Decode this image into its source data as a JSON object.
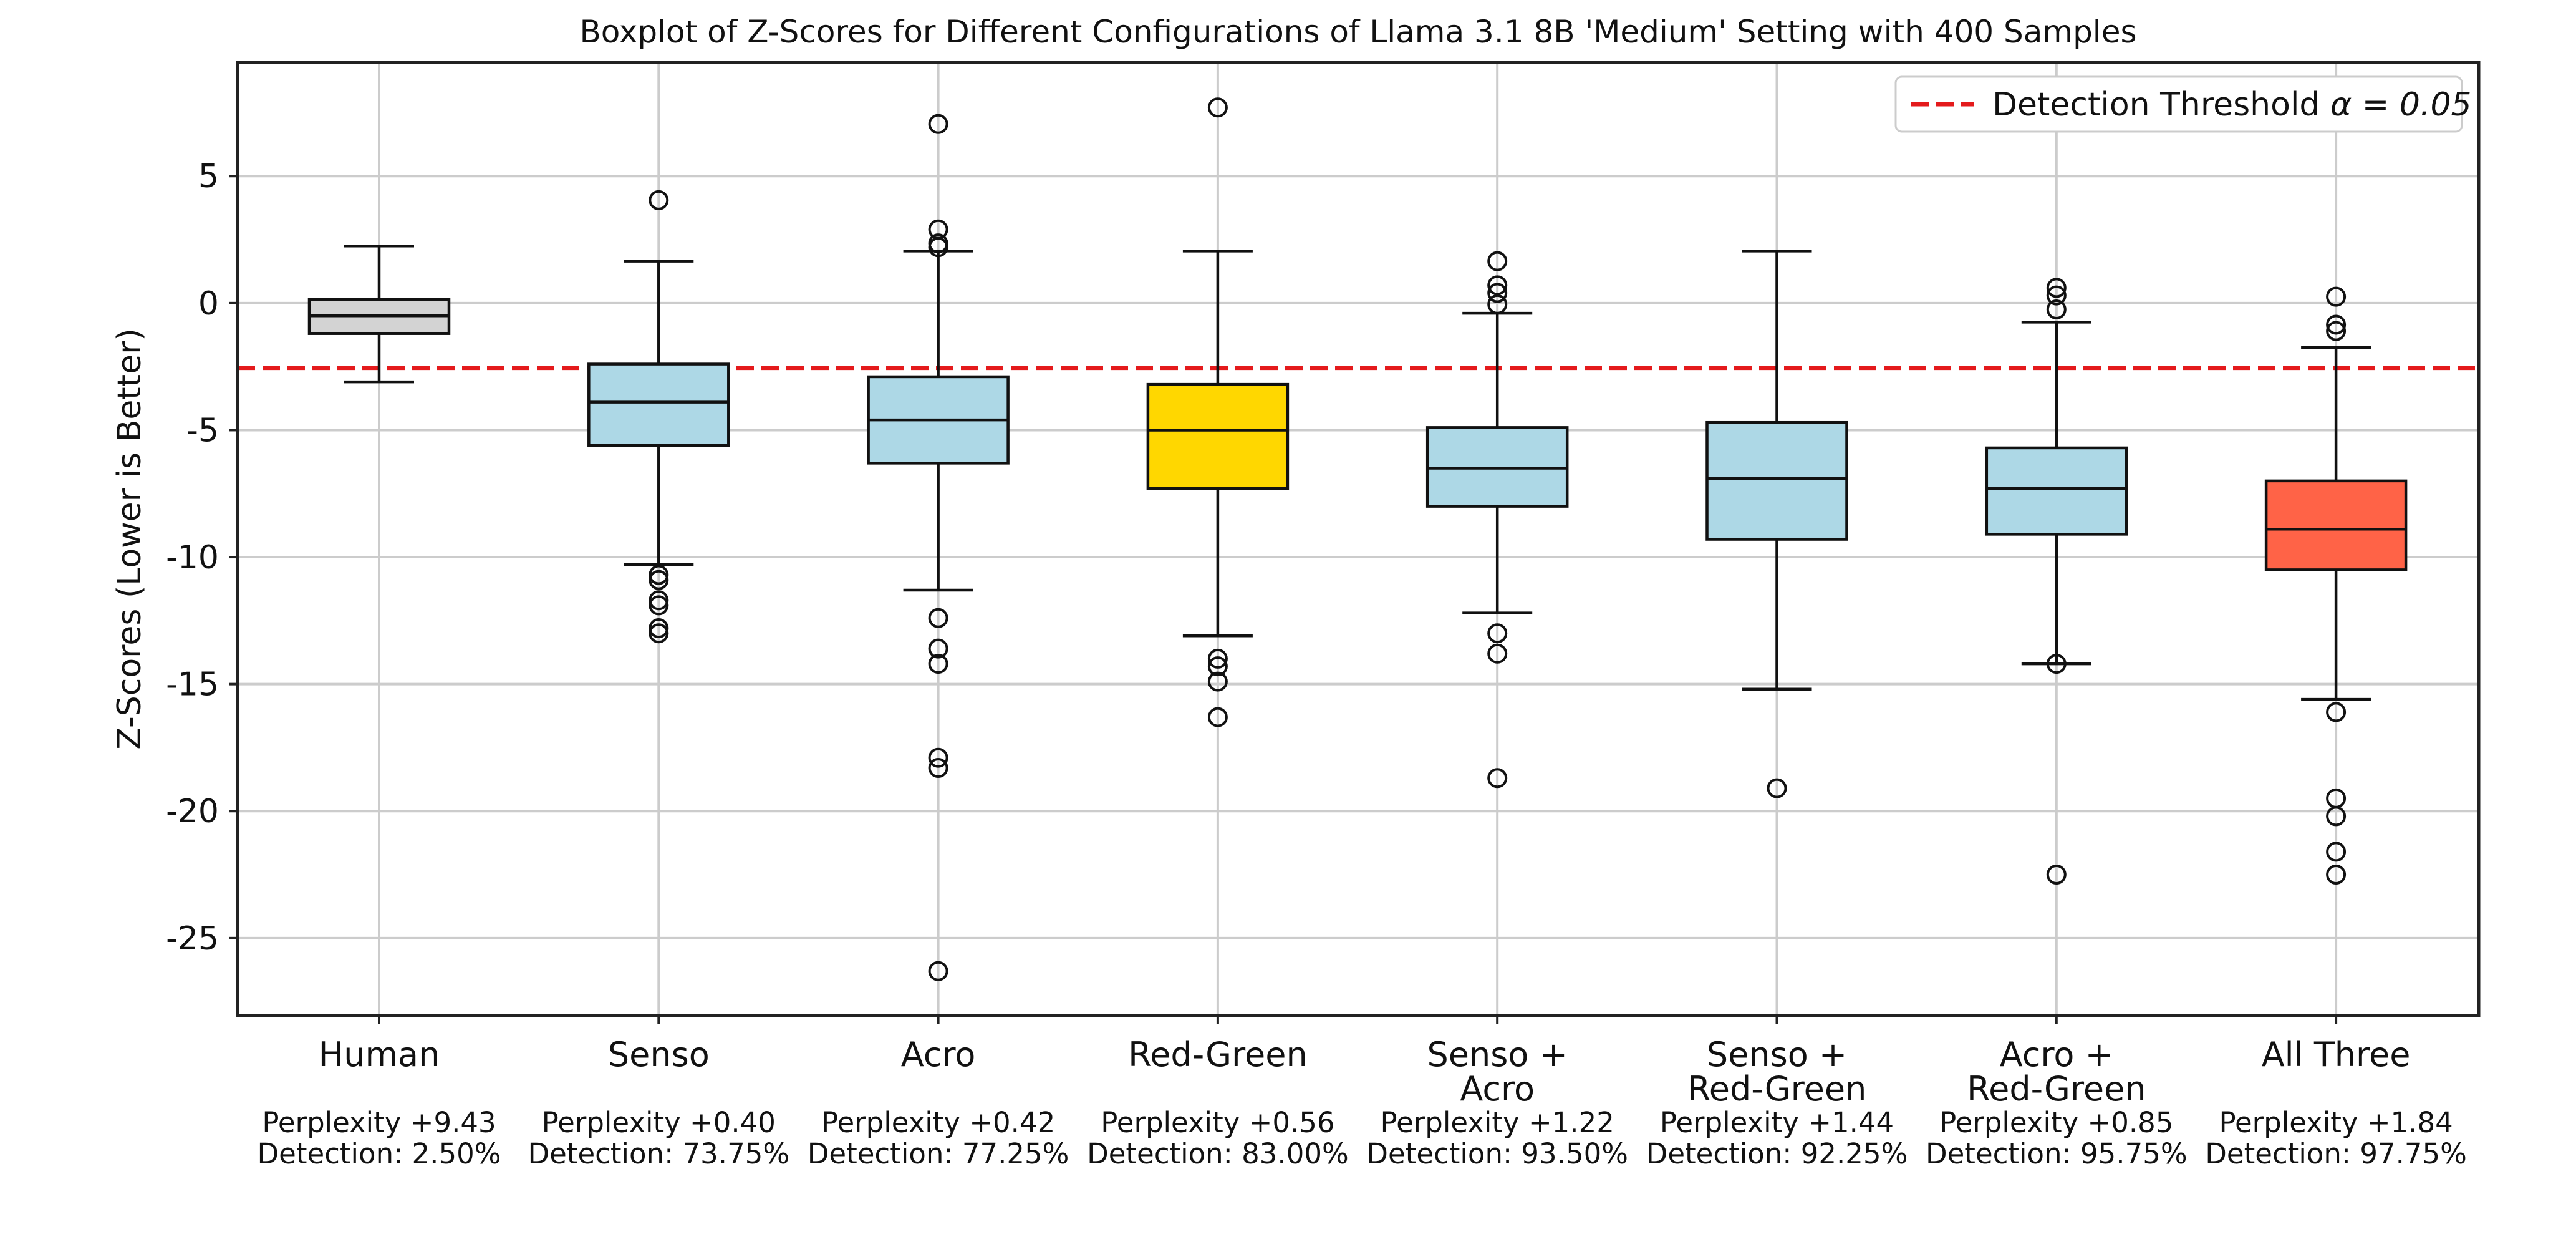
{
  "chart_data": {
    "type": "boxplot",
    "title": "Boxplot of Z-Scores for Different Configurations of Llama 3.1 8B 'Medium' Setting with 400 Samples",
    "xlabel": "",
    "ylabel": "Z-Scores (Lower is Better)",
    "ylim": [
      -28,
      9.5
    ],
    "yticks": [
      5,
      0,
      -5,
      -10,
      -15,
      -20,
      -25
    ],
    "grid": true,
    "legend": {
      "location": "top-right",
      "entries": [
        {
          "label_prefix": "Detection Threshold ",
          "label_math": "α = 0.05",
          "style": "dashed",
          "color": "#e41a1c"
        }
      ]
    },
    "threshold": {
      "value": -2.55,
      "color": "#e41a1c",
      "style": "dashed"
    },
    "categories": [
      {
        "label": [
          "Human"
        ],
        "perplexity": "Perplexity +9.43",
        "detection": "Detection: 2.50%",
        "color": "#d3d3d3",
        "whislo": -3.1,
        "q1": -1.2,
        "med": -0.5,
        "q3": 0.15,
        "whishi": 2.25,
        "fliers": []
      },
      {
        "label": [
          "Senso"
        ],
        "perplexity": "Perplexity +0.40",
        "detection": "Detection: 73.75%",
        "color": "#add8e6",
        "whislo": -10.3,
        "q1": -5.6,
        "med": -3.9,
        "q3": -2.4,
        "whishi": 1.65,
        "fliers": [
          4.05,
          -10.7,
          -10.9,
          -11.7,
          -11.9,
          -12.8,
          -13.0
        ]
      },
      {
        "label": [
          "Acro"
        ],
        "perplexity": "Perplexity +0.42",
        "detection": "Detection: 77.25%",
        "color": "#add8e6",
        "whislo": -11.3,
        "q1": -6.3,
        "med": -4.6,
        "q3": -2.9,
        "whishi": 2.05,
        "fliers": [
          7.05,
          2.9,
          2.35,
          2.2,
          -12.4,
          -13.6,
          -14.2,
          -17.9,
          -18.3,
          -26.3
        ]
      },
      {
        "label": [
          "Red-Green"
        ],
        "perplexity": "Perplexity +0.56",
        "detection": "Detection: 83.00%",
        "color": "#ffd700",
        "whislo": -13.1,
        "q1": -7.3,
        "med": -5.0,
        "q3": -3.2,
        "whishi": 2.05,
        "fliers": [
          7.7,
          -14.0,
          -14.3,
          -14.9,
          -16.3
        ]
      },
      {
        "label": [
          "Senso +",
          "Acro"
        ],
        "perplexity": "Perplexity +1.22",
        "detection": "Detection: 93.50%",
        "color": "#add8e6",
        "whislo": -12.2,
        "q1": -8.0,
        "med": -6.5,
        "q3": -4.9,
        "whishi": -0.4,
        "fliers": [
          1.65,
          0.7,
          0.4,
          -0.05,
          -13.0,
          -13.8,
          -18.7
        ]
      },
      {
        "label": [
          "Senso +",
          "Red-Green"
        ],
        "perplexity": "Perplexity +1.44",
        "detection": "Detection: 92.25%",
        "color": "#add8e6",
        "whislo": -15.2,
        "q1": -9.3,
        "med": -6.9,
        "q3": -4.7,
        "whishi": 2.05,
        "fliers": [
          -19.1
        ]
      },
      {
        "label": [
          "Acro +",
          "Red-Green"
        ],
        "perplexity": "Perplexity +0.85",
        "detection": "Detection: 95.75%",
        "color": "#add8e6",
        "whislo": -14.2,
        "q1": -9.1,
        "med": -7.3,
        "q3": -5.7,
        "whishi": -0.75,
        "fliers": [
          0.6,
          0.3,
          -0.25,
          -14.2,
          -22.5
        ]
      },
      {
        "label": [
          "All Three"
        ],
        "perplexity": "Perplexity +1.84",
        "detection": "Detection: 97.75%",
        "color": "#ff6347",
        "whislo": -15.6,
        "q1": -10.5,
        "med": -8.9,
        "q3": -7.0,
        "whishi": -1.75,
        "fliers": [
          0.25,
          -0.85,
          -1.1,
          -16.1,
          -19.5,
          -20.2,
          -21.6,
          -22.5
        ]
      }
    ]
  }
}
